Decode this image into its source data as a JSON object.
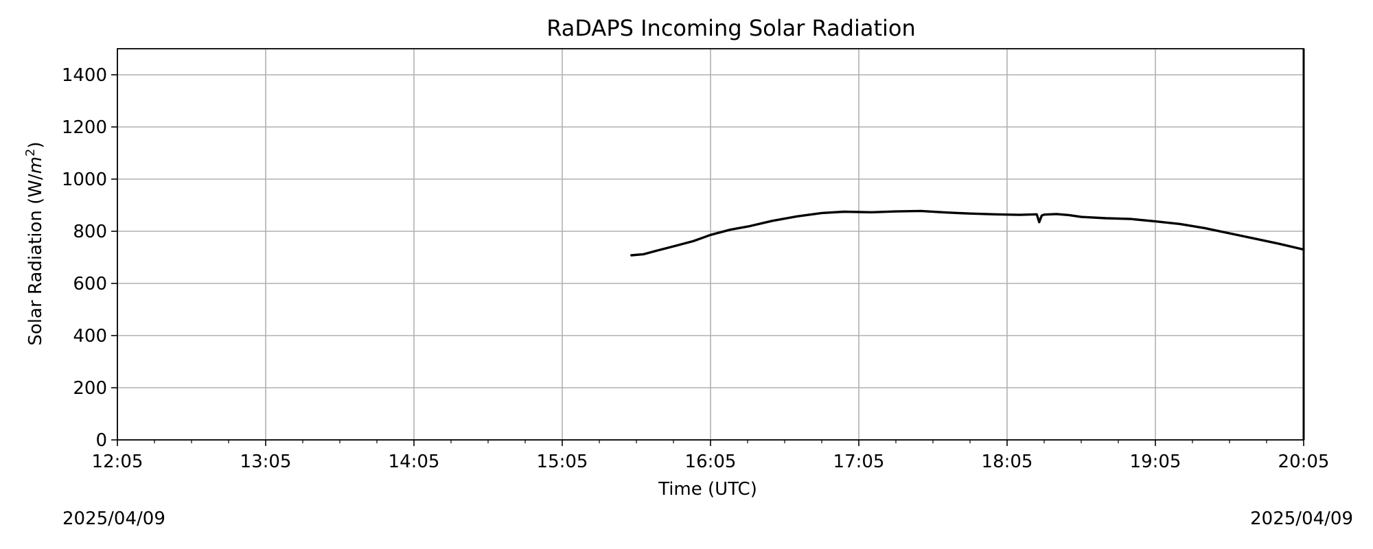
{
  "chart_data": {
    "type": "line",
    "title": "RaDAPS Incoming Solar Radiation",
    "xlabel": "Time (UTC)",
    "ylabel_text": "Solar Radiation (W/",
    "ylabel_unit": "m",
    "ylabel_exp": "2",
    "ylabel_close": ")",
    "xlim": [
      "12:05",
      "20:05"
    ],
    "ylim": [
      0,
      1500
    ],
    "x_ticks": [
      "12:05",
      "13:05",
      "14:05",
      "15:05",
      "16:05",
      "17:05",
      "18:05",
      "19:05",
      "20:05"
    ],
    "y_ticks": [
      0,
      200,
      400,
      600,
      800,
      1000,
      1200,
      1400
    ],
    "grid": true,
    "line_color": "#000000",
    "series": [
      {
        "x": [
          "15:33",
          "15:38",
          "15:43",
          "15:50",
          "15:58",
          "16:05",
          "16:13",
          "16:21",
          "16:30",
          "16:40",
          "16:50",
          "16:59",
          "17:10",
          "17:20",
          "17:30",
          "17:40",
          "17:50",
          "18:00",
          "18:10",
          "18:17",
          "18:18",
          "18:19",
          "18:20",
          "18:25",
          "18:30",
          "18:35",
          "18:45",
          "18:55",
          "19:05",
          "19:15",
          "19:25",
          "19:35",
          "19:45",
          "19:55",
          "20:05"
        ],
        "y": [
          708,
          712,
          725,
          742,
          762,
          786,
          806,
          820,
          840,
          857,
          870,
          875,
          873,
          876,
          878,
          872,
          868,
          865,
          863,
          865,
          835,
          860,
          864,
          866,
          862,
          855,
          850,
          847,
          838,
          828,
          812,
          792,
          772,
          752,
          730
        ]
      }
    ]
  },
  "footer": {
    "date_left": "2025/04/09",
    "date_right": "2025/04/09"
  }
}
